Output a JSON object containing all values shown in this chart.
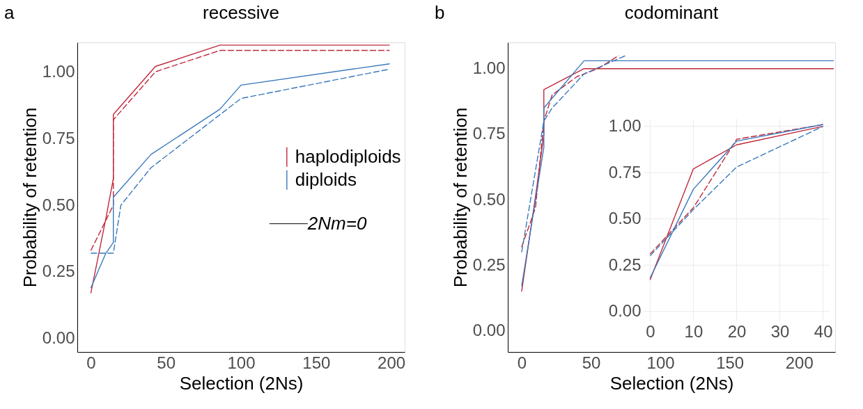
{
  "chart_data": [
    {
      "type": "line",
      "title": "recessive",
      "xlabel": "Selection (2Ns)",
      "ylabel": "Probability of retention",
      "annotations": [
        "a",
        "2Nm=0"
      ],
      "legend": "right",
      "grid": false,
      "xlim": [
        -9,
        209
      ],
      "xticks": [
        0,
        50,
        100,
        150,
        200
      ],
      "ylim": [
        -0.05,
        1.11
      ],
      "yticks": [
        {
          "value": 0,
          "label": "0.00"
        },
        {
          "value": 0.25,
          "label": "0.25"
        },
        {
          "value": 0.5,
          "label": "0.50"
        },
        {
          "value": 0.75,
          "label": "0.75"
        },
        {
          "value": 1,
          "label": "1.00"
        }
      ],
      "series": [
        {
          "name": "haplodiploids",
          "color": "#c0283c",
          "line_style": "solid",
          "x": [
            0,
            10,
            15,
            15,
            43,
            86,
            199
          ],
          "values": [
            0.17,
            0.45,
            0.6,
            0.84,
            1.02,
            1.1,
            1.1
          ]
        },
        {
          "color": "#c0283c",
          "line_style": "dashed",
          "x": [
            0,
            15,
            15,
            43,
            86,
            199
          ],
          "values": [
            0.33,
            0.5,
            0.82,
            1.0,
            1.08,
            1.08
          ]
        },
        {
          "name": "diploids",
          "color": "#3a78bc",
          "line_style": "solid",
          "x": [
            0,
            10,
            15,
            15,
            40,
            86,
            100,
            199
          ],
          "values": [
            0.19,
            0.32,
            0.36,
            0.53,
            0.69,
            0.86,
            0.95,
            1.03
          ]
        },
        {
          "color": "#3a78bc",
          "line_style": "dashed",
          "x": [
            0,
            15,
            20,
            40,
            100,
            199
          ],
          "values": [
            0.32,
            0.32,
            0.5,
            0.64,
            0.9,
            1.01
          ]
        }
      ]
    },
    {
      "type": "line",
      "title": "codominant",
      "xlabel": "Selection (2Ns)",
      "ylabel": "Probability of retention",
      "annotations": [
        "b"
      ],
      "legend": false,
      "grid": false,
      "xlim": [
        -10,
        226
      ],
      "xticks": [
        0,
        50,
        100,
        150,
        200
      ],
      "ylim": [
        -0.08,
        1.1
      ],
      "yticks": [
        {
          "value": 0,
          "label": "0.00"
        },
        {
          "value": 0.25,
          "label": "0.25"
        },
        {
          "value": 0.5,
          "label": "0.50"
        },
        {
          "value": 0.75,
          "label": "0.75"
        },
        {
          "value": 1,
          "label": "1.00"
        }
      ],
      "series": [
        {
          "color": "#c0283c",
          "line_style": "solid",
          "x": [
            0,
            11,
            16,
            16,
            45,
            225
          ],
          "values": [
            0.15,
            0.55,
            0.75,
            0.92,
            1.0,
            1.0
          ]
        },
        {
          "color": "#c0283c",
          "line_style": "dashed",
          "x": [
            0,
            10,
            16,
            22,
            40,
            55,
            70
          ],
          "values": [
            0.32,
            0.47,
            0.8,
            0.9,
            0.97,
            1.0,
            1.05
          ]
        },
        {
          "color": "#3a78bc",
          "line_style": "solid",
          "x": [
            0,
            16,
            16,
            45,
            225
          ],
          "values": [
            0.17,
            0.7,
            0.85,
            1.03,
            1.03
          ]
        },
        {
          "color": "#3a78bc",
          "line_style": "dashed",
          "x": [
            0,
            16,
            22,
            45,
            75
          ],
          "values": [
            0.3,
            0.8,
            0.85,
            0.98,
            1.05
          ]
        }
      ]
    },
    {
      "type": "line",
      "grid": true,
      "xlim": [
        -1.5,
        41.5
      ],
      "xticks": [
        0,
        10,
        20,
        30,
        40
      ],
      "ylim": [
        -0.05,
        1.04
      ],
      "yticks": [
        {
          "value": 0,
          "label": "0.00"
        },
        {
          "value": 0.25,
          "label": "0.25"
        },
        {
          "value": 0.5,
          "label": "0.50"
        },
        {
          "value": 0.75,
          "label": "0.75"
        },
        {
          "value": 1,
          "label": "1.00"
        }
      ],
      "series": [
        {
          "color": "#c0283c",
          "line_style": "solid",
          "x": [
            0,
            10,
            20,
            40
          ],
          "values": [
            0.17,
            0.77,
            0.9,
            1.0
          ]
        },
        {
          "color": "#c0283c",
          "line_style": "dashed",
          "x": [
            0,
            10,
            20,
            40
          ],
          "values": [
            0.31,
            0.56,
            0.93,
            1.01
          ]
        },
        {
          "color": "#3a78bc",
          "line_style": "solid",
          "x": [
            0,
            10,
            20,
            40
          ],
          "values": [
            0.18,
            0.66,
            0.92,
            1.01
          ]
        },
        {
          "color": "#3a78bc",
          "line_style": "dashed",
          "x": [
            0,
            10,
            20,
            40
          ],
          "values": [
            0.3,
            0.55,
            0.78,
            1.0
          ]
        }
      ]
    }
  ]
}
